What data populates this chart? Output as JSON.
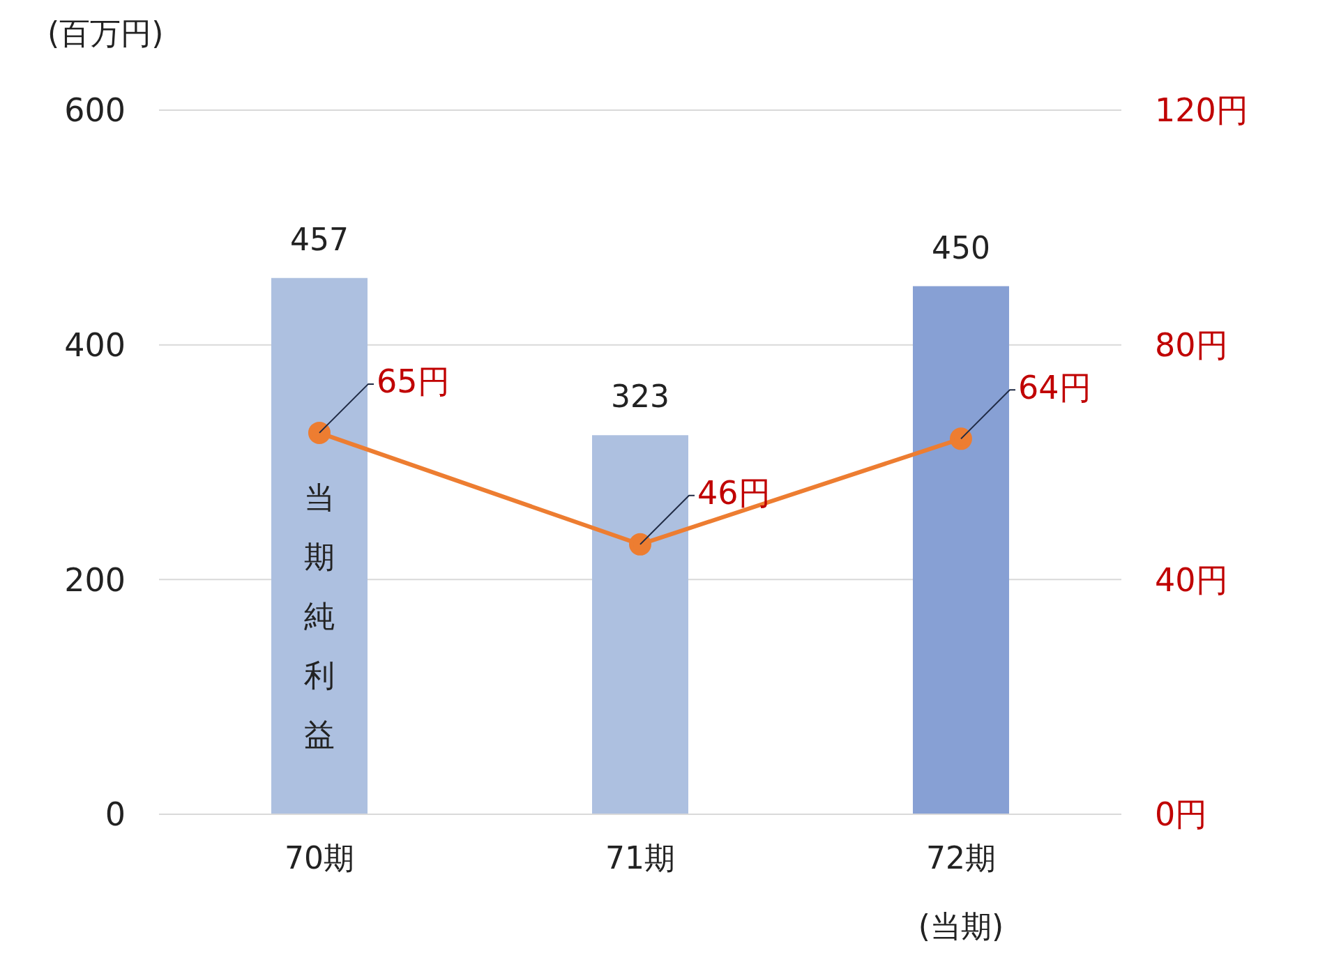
{
  "chart_data": {
    "type": "bar",
    "ylabel": "(百万円)",
    "categories": [
      "70期",
      "71期",
      "72期\n(当期)"
    ],
    "series": [
      {
        "name": "当期純利益",
        "colors": [
          "#adc0e0",
          "#adc0e0",
          "#87a0d4"
        ],
        "values": [
          457,
          323,
          450
        ],
        "value_labels": [
          "457",
          "323",
          "450"
        ]
      },
      {
        "type": "line",
        "axis": "y2",
        "color": "#ed7d31",
        "marker": "circle",
        "values": [
          65,
          46,
          64
        ],
        "value_labels": [
          "65円",
          "46円",
          "64円"
        ]
      }
    ],
    "ylim": [
      0,
      600
    ],
    "yticks": [
      0,
      200,
      400,
      600
    ],
    "y2lim": [
      0,
      120
    ],
    "y2ticks": [
      {
        "value": 0,
        "label": "0円"
      },
      {
        "value": 40,
        "label": "40円"
      },
      {
        "value": 80,
        "label": "80円"
      },
      {
        "value": 120,
        "label": "120円"
      }
    ],
    "grid": "y",
    "legend": false
  }
}
